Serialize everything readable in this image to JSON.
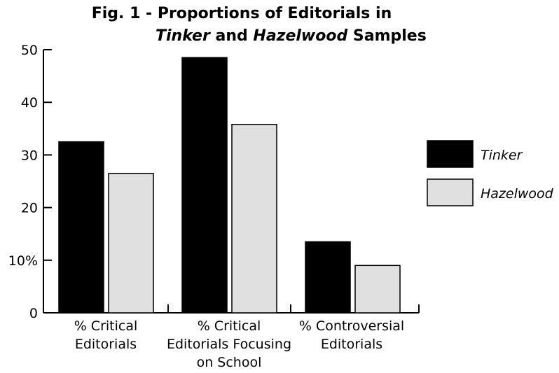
{
  "chart_data": {
    "type": "bar",
    "title_line1": "Fig. 1 - Proportions of Editorials in",
    "title_line2": {
      "italic1": "Tinker",
      "plain1": " and ",
      "italic2": "Hazelwood",
      "plain2": " Samples"
    },
    "categories": [
      [
        "% Critical",
        "Editorials"
      ],
      [
        "% Critical",
        "Editorials Focusing",
        "on School"
      ],
      [
        "% Controversial",
        "Editorials"
      ]
    ],
    "series": [
      {
        "name": "Tinker",
        "color": "#000000",
        "values": [
          32.5,
          48.5,
          13.5
        ]
      },
      {
        "name": "Hazelwood",
        "color": "#e0e0e0",
        "values": [
          26.5,
          35.8,
          9
        ]
      }
    ],
    "yticks": [
      "0",
      "10%",
      "20",
      "30",
      "40",
      "50"
    ],
    "ytick_values": [
      0,
      10,
      20,
      30,
      40,
      50
    ],
    "ylim": [
      0,
      50
    ],
    "grid": false,
    "legend_position": "right"
  }
}
